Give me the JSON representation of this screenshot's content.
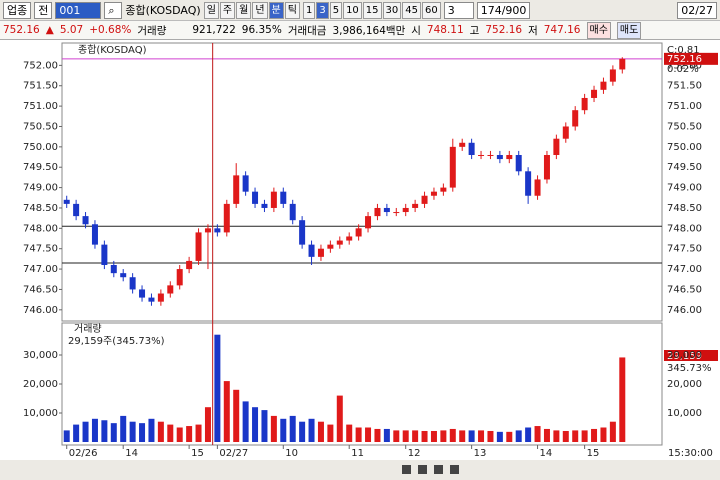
{
  "toolbar": {
    "market": "업종",
    "mode": "전",
    "code": "001",
    "name": "종합(KOSDAQ)",
    "periods": [
      "일",
      "주",
      "월",
      "년",
      "분",
      "틱"
    ],
    "intervals": [
      "1",
      "3",
      "5",
      "10",
      "15",
      "30",
      "45",
      "60"
    ],
    "interval_input": "3",
    "count": "174/900",
    "date": "02/27"
  },
  "info": {
    "price": "752.16",
    "arrow": "▲",
    "change": "5.07",
    "change_pct": "+0.68%",
    "volume_label": "거래량",
    "volume": "921,722",
    "volume_ratio": "96.35%",
    "amount_label": "거래대금",
    "amount": "3,986,164백만",
    "open_label": "시",
    "open": "748.11",
    "high_label": "고",
    "high": "752.16",
    "low_label": "저",
    "low": "747.16",
    "buy": "매수",
    "sell": "매도"
  },
  "chart_data": {
    "type": "candlestick",
    "title": "종합(KOSDAQ)",
    "volume_title": "거래량",
    "volume_summary": "29,159주(345.73%)",
    "volume_last_label": "29,159",
    "volume_last_pct": "345.73%",
    "corner_label": "C:0.81",
    "last_pct": "0.02%",
    "time_label": "15:30:00",
    "up_color": "#e01a1a",
    "down_color": "#1a36c8",
    "last_line_color": "#d040d0",
    "hlines": [
      748.05,
      747.15
    ],
    "categories": [
      "02/26",
      null,
      null,
      null,
      null,
      null,
      "14",
      null,
      null,
      null,
      null,
      null,
      null,
      "15",
      null,
      null,
      "02/27",
      null,
      null,
      null,
      null,
      null,
      null,
      "10",
      null,
      null,
      null,
      null,
      null,
      null,
      "11",
      null,
      null,
      null,
      null,
      null,
      "12",
      null,
      null,
      null,
      null,
      null,
      null,
      "13",
      null,
      null,
      null,
      null,
      null,
      null,
      "14",
      null,
      null,
      null,
      null,
      "15",
      null,
      null,
      null,
      null
    ],
    "open": [
      748.7,
      748.6,
      748.3,
      748.1,
      747.6,
      747.1,
      746.9,
      746.8,
      746.5,
      746.3,
      746.2,
      746.4,
      746.6,
      747.0,
      747.2,
      747.9,
      748.0,
      747.9,
      748.6,
      749.3,
      748.9,
      748.6,
      748.5,
      748.9,
      748.6,
      748.2,
      747.6,
      747.3,
      747.5,
      747.6,
      747.7,
      747.8,
      748.0,
      748.3,
      748.5,
      748.4,
      748.4,
      748.5,
      748.6,
      748.8,
      748.9,
      749.0,
      750.0,
      750.1,
      749.8,
      749.8,
      749.8,
      749.7,
      749.8,
      749.4,
      748.8,
      749.2,
      749.8,
      750.2,
      750.5,
      750.9,
      751.2,
      751.4,
      751.6,
      751.9
    ],
    "high": [
      748.8,
      748.7,
      748.4,
      748.2,
      747.7,
      747.2,
      747.0,
      746.9,
      746.6,
      746.4,
      746.5,
      746.7,
      747.1,
      747.3,
      748.0,
      748.1,
      748.1,
      748.7,
      749.6,
      749.4,
      749.0,
      748.7,
      749.0,
      749.0,
      748.7,
      748.3,
      747.7,
      747.6,
      747.7,
      747.8,
      747.9,
      748.1,
      748.4,
      748.6,
      748.6,
      748.5,
      748.6,
      748.7,
      748.9,
      749.0,
      749.1,
      750.2,
      750.2,
      750.2,
      749.9,
      749.9,
      749.9,
      749.9,
      749.9,
      749.5,
      749.3,
      749.9,
      750.3,
      750.6,
      751.0,
      751.3,
      751.5,
      751.7,
      752.0,
      752.2
    ],
    "low": [
      748.5,
      748.2,
      748.0,
      747.5,
      747.0,
      746.8,
      746.7,
      746.4,
      746.2,
      746.1,
      746.1,
      746.3,
      746.5,
      746.9,
      747.1,
      747.0,
      747.8,
      747.8,
      748.5,
      748.8,
      748.5,
      748.4,
      748.4,
      748.5,
      748.1,
      747.5,
      747.1,
      747.2,
      747.4,
      747.5,
      747.6,
      747.7,
      747.9,
      748.2,
      748.3,
      748.3,
      748.3,
      748.4,
      748.5,
      748.7,
      748.8,
      748.9,
      749.9,
      749.7,
      749.7,
      749.7,
      749.6,
      749.6,
      749.3,
      748.6,
      748.7,
      749.1,
      749.7,
      750.1,
      750.4,
      750.8,
      751.1,
      751.3,
      751.5,
      751.8
    ],
    "close": [
      748.6,
      748.3,
      748.1,
      747.6,
      747.1,
      746.9,
      746.8,
      746.5,
      746.3,
      746.2,
      746.4,
      746.6,
      747.0,
      747.2,
      747.9,
      748.0,
      747.9,
      748.6,
      749.3,
      748.9,
      748.6,
      748.5,
      748.9,
      748.6,
      748.2,
      747.6,
      747.3,
      747.5,
      747.6,
      747.7,
      747.8,
      748.0,
      748.3,
      748.5,
      748.4,
      748.4,
      748.5,
      748.6,
      748.8,
      748.9,
      749.0,
      750.0,
      750.1,
      749.8,
      749.8,
      749.8,
      749.7,
      749.8,
      749.4,
      748.8,
      749.2,
      749.8,
      750.2,
      750.5,
      750.9,
      751.2,
      751.4,
      751.6,
      751.9,
      752.16
    ],
    "volume": [
      4000,
      6000,
      7000,
      8000,
      7500,
      6500,
      9000,
      7000,
      6500,
      8000,
      7000,
      6000,
      5000,
      5500,
      6000,
      12000,
      37000,
      21000,
      18000,
      14000,
      12000,
      11000,
      9000,
      8000,
      9000,
      7000,
      8000,
      7000,
      6000,
      16000,
      6000,
      5000,
      5000,
      4500,
      4500,
      4000,
      4000,
      4000,
      3800,
      3800,
      4000,
      4500,
      4000,
      4000,
      4000,
      3800,
      3500,
      3500,
      4000,
      5000,
      5500,
      4500,
      4000,
      3800,
      4000,
      4000,
      4500,
      5000,
      7000,
      29159
    ],
    "ylim": [
      745.75,
      752.5
    ],
    "yticks": [
      {
        "value": 746,
        "label": "746.00"
      },
      {
        "value": 746.5,
        "label": "746.50"
      },
      {
        "value": 747,
        "label": "747.00"
      },
      {
        "value": 747.5,
        "label": "747.50"
      },
      {
        "value": 748,
        "label": "748.00"
      },
      {
        "value": 748.5,
        "label": "748.50"
      },
      {
        "value": 749,
        "label": "749.00"
      },
      {
        "value": 749.5,
        "label": "749.50"
      },
      {
        "value": 750,
        "label": "750.00"
      },
      {
        "value": 750.5,
        "label": "750.50"
      },
      {
        "value": 751,
        "label": "751.00"
      },
      {
        "value": 751.5,
        "label": "751.50"
      },
      {
        "value": 752,
        "label": "752.00"
      }
    ],
    "vlim": [
      0,
      40000
    ],
    "vticks": [
      {
        "value": 10000,
        "label": "10,000"
      },
      {
        "value": 20000,
        "label": "20,000"
      },
      {
        "value": 30000,
        "label": "30,000"
      }
    ]
  }
}
